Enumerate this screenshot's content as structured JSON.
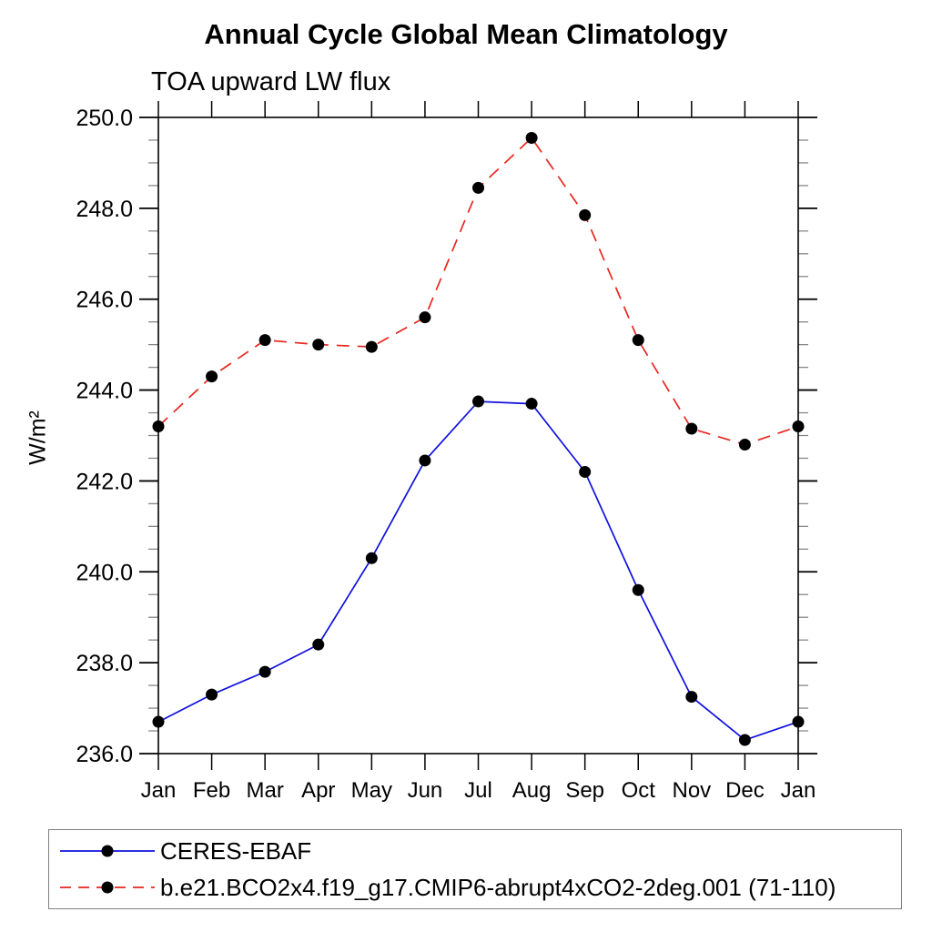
{
  "page": {
    "background": "#ffffff"
  },
  "chart_data": {
    "type": "line",
    "title": "Annual Cycle Global Mean Climatology",
    "subtitle": "TOA upward LW flux",
    "ylabel": "W/m²",
    "xlabel": "",
    "categories": [
      "Jan",
      "Feb",
      "Mar",
      "Apr",
      "May",
      "Jun",
      "Jul",
      "Aug",
      "Sep",
      "Oct",
      "Nov",
      "Dec",
      "Jan"
    ],
    "ylim": [
      236.0,
      250.0
    ],
    "yticks": [
      236,
      238,
      240,
      242,
      244,
      246,
      248,
      250
    ],
    "ytick_labels": [
      "236.0",
      "238.0",
      "240.0",
      "242.0",
      "244.0",
      "246.0",
      "248.0",
      "250.0"
    ],
    "ytick_minor_step": 0.5,
    "grid": false,
    "legend_position": "bottom-left-box",
    "frame_color": "#000000",
    "minor_tick_color": "#888888",
    "marker_color": "#000000",
    "series": [
      {
        "name": "CERES-EBAF",
        "color": "#1010e0",
        "line_style": "solid",
        "marker": "circle",
        "values": [
          236.7,
          237.3,
          237.8,
          238.4,
          240.3,
          242.45,
          243.75,
          243.7,
          242.2,
          239.6,
          237.25,
          236.3,
          236.7
        ]
      },
      {
        "name": "b.e21.BCO2x4.f19_g17.CMIP6-abrupt4xCO2-2deg.001 (71-110)",
        "color": "#e8261f",
        "line_style": "dashed",
        "marker": "circle",
        "values": [
          243.2,
          244.3,
          245.1,
          245.0,
          244.95,
          245.6,
          248.45,
          249.55,
          247.85,
          245.1,
          243.15,
          242.8,
          243.2
        ]
      }
    ]
  }
}
